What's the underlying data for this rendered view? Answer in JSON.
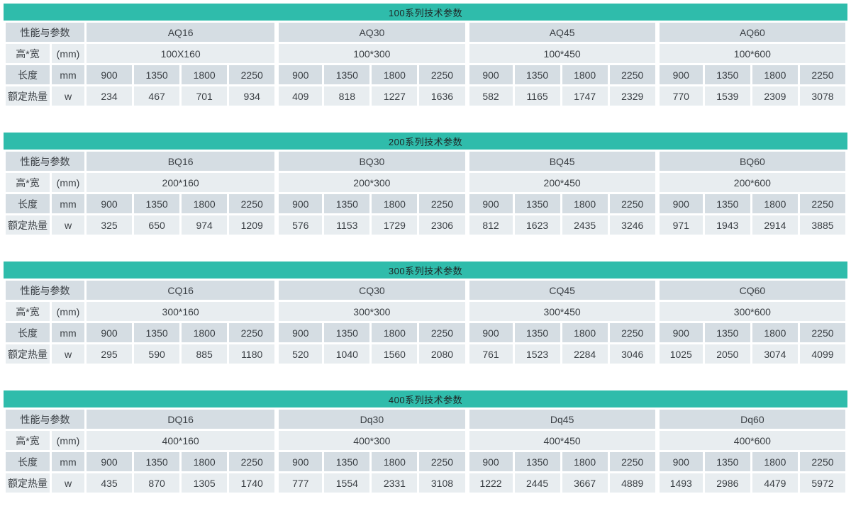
{
  "colors": {
    "header_bg": "#2fbcab",
    "header_text": "#1e2424",
    "row_dark": "#d5dde3",
    "row_light": "#e8edf0",
    "cell_text": "#3a3f44",
    "gap": "#ffffff"
  },
  "row_labels": {
    "perf": "性能与参数",
    "size": "高*宽",
    "size_unit": "(mm)",
    "length": "长度",
    "length_unit": "mm",
    "heat": "额定热量",
    "heat_unit": "w"
  },
  "lengths": [
    "900",
    "1350",
    "1800",
    "2250"
  ],
  "tables": [
    {
      "title": "100系列技术参数",
      "models": [
        {
          "name": "AQ16",
          "size": "100X160",
          "heat": [
            "234",
            "467",
            "701",
            "934"
          ]
        },
        {
          "name": "AQ30",
          "size": "100*300",
          "heat": [
            "409",
            "818",
            "1227",
            "1636"
          ]
        },
        {
          "name": "AQ45",
          "size": "100*450",
          "heat": [
            "582",
            "1165",
            "1747",
            "2329"
          ]
        },
        {
          "name": "AQ60",
          "size": "100*600",
          "heat": [
            "770",
            "1539",
            "2309",
            "3078"
          ]
        }
      ]
    },
    {
      "title": "200系列技术参数",
      "models": [
        {
          "name": "BQ16",
          "size": "200*160",
          "heat": [
            "325",
            "650",
            "974",
            "1209"
          ]
        },
        {
          "name": "BQ30",
          "size": "200*300",
          "heat": [
            "576",
            "1153",
            "1729",
            "2306"
          ]
        },
        {
          "name": "BQ45",
          "size": "200*450",
          "heat": [
            "812",
            "1623",
            "2435",
            "3246"
          ]
        },
        {
          "name": "BQ60",
          "size": "200*600",
          "heat": [
            "971",
            "1943",
            "2914",
            "3885"
          ]
        }
      ]
    },
    {
      "title": "300系列技术参数",
      "models": [
        {
          "name": "CQ16",
          "size": "300*160",
          "heat": [
            "295",
            "590",
            "885",
            "1180"
          ]
        },
        {
          "name": "CQ30",
          "size": "300*300",
          "heat": [
            "520",
            "1040",
            "1560",
            "2080"
          ]
        },
        {
          "name": "CQ45",
          "size": "300*450",
          "heat": [
            "761",
            "1523",
            "2284",
            "3046"
          ]
        },
        {
          "name": "CQ60",
          "size": "300*600",
          "heat": [
            "1025",
            "2050",
            "3074",
            "4099"
          ]
        }
      ]
    },
    {
      "title": "400系列技术参数",
      "models": [
        {
          "name": "DQ16",
          "size": "400*160",
          "heat": [
            "435",
            "870",
            "1305",
            "1740"
          ]
        },
        {
          "name": "Dq30",
          "size": "400*300",
          "heat": [
            "777",
            "1554",
            "2331",
            "3108"
          ]
        },
        {
          "name": "Dq45",
          "size": "400*450",
          "heat": [
            "1222",
            "2445",
            "3667",
            "4889"
          ]
        },
        {
          "name": "Dq60",
          "size": "400*600",
          "heat": [
            "1493",
            "2986",
            "4479",
            "5972"
          ]
        }
      ]
    }
  ]
}
